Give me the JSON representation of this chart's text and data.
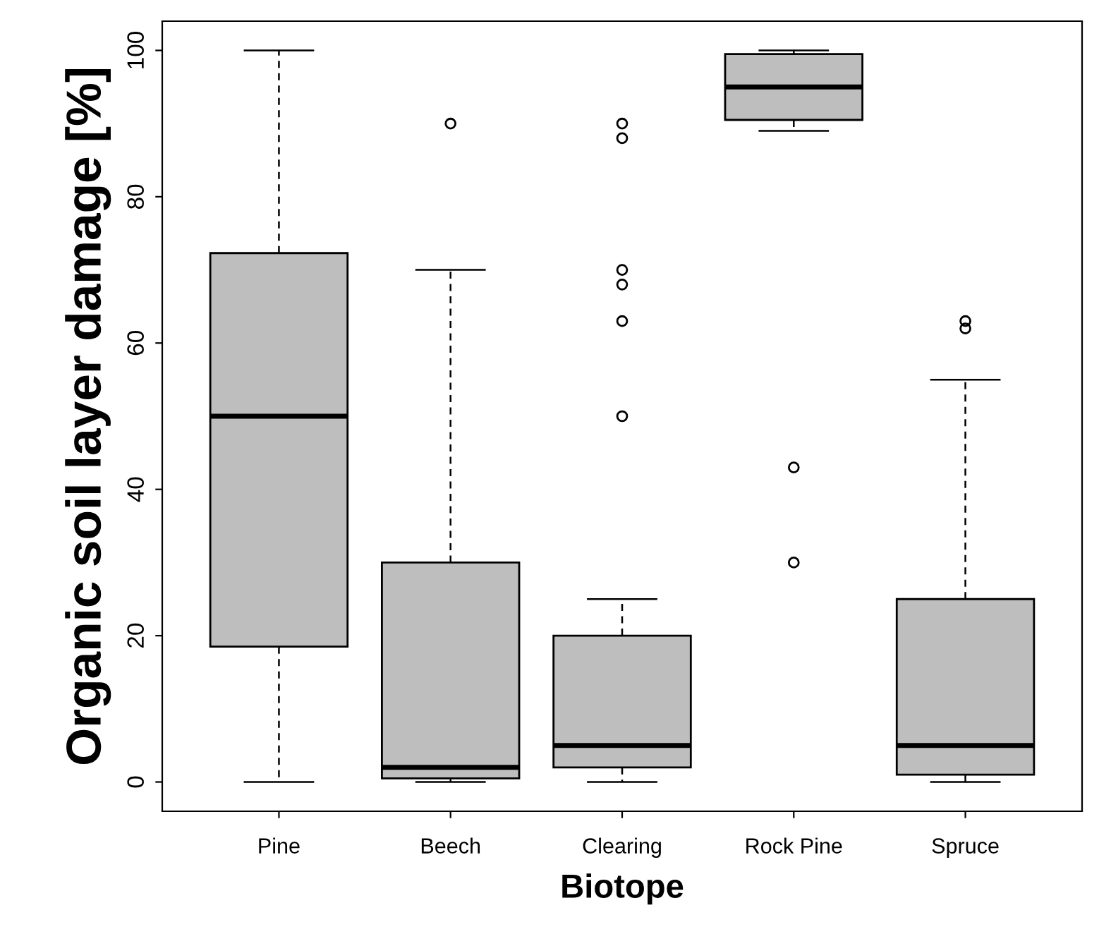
{
  "chart_data": {
    "type": "box",
    "xlabel": "Biotope",
    "ylabel": "Organic soil layer damage [%]",
    "categories": [
      "Pine",
      "Beech",
      "Clearing",
      "Rock Pine",
      "Spruce"
    ],
    "boxes": [
      {
        "low": 0,
        "q1": 18.5,
        "median": 50,
        "q3": 72.3,
        "high": 100
      },
      {
        "low": 0,
        "q1": 0.5,
        "median": 2,
        "q3": 30,
        "high": 70,
        "outliers": [
          90
        ]
      },
      {
        "low": 0,
        "q1": 2,
        "median": 5,
        "q3": 20,
        "high": 25,
        "outliers": [
          50,
          63,
          68,
          70,
          88,
          90
        ]
      },
      {
        "low": 89,
        "q1": 90.5,
        "median": 95,
        "q3": 99.5,
        "high": 100,
        "outliers": [
          43,
          30
        ]
      },
      {
        "low": 0,
        "q1": 1,
        "median": 5,
        "q3": 25,
        "high": 55,
        "outliers": [
          62,
          63
        ]
      }
    ],
    "color": "#bebebe",
    "ylim": [
      -4,
      104
    ],
    "yticks": [
      0,
      20,
      40,
      60,
      80,
      100
    ],
    "grid": false
  }
}
